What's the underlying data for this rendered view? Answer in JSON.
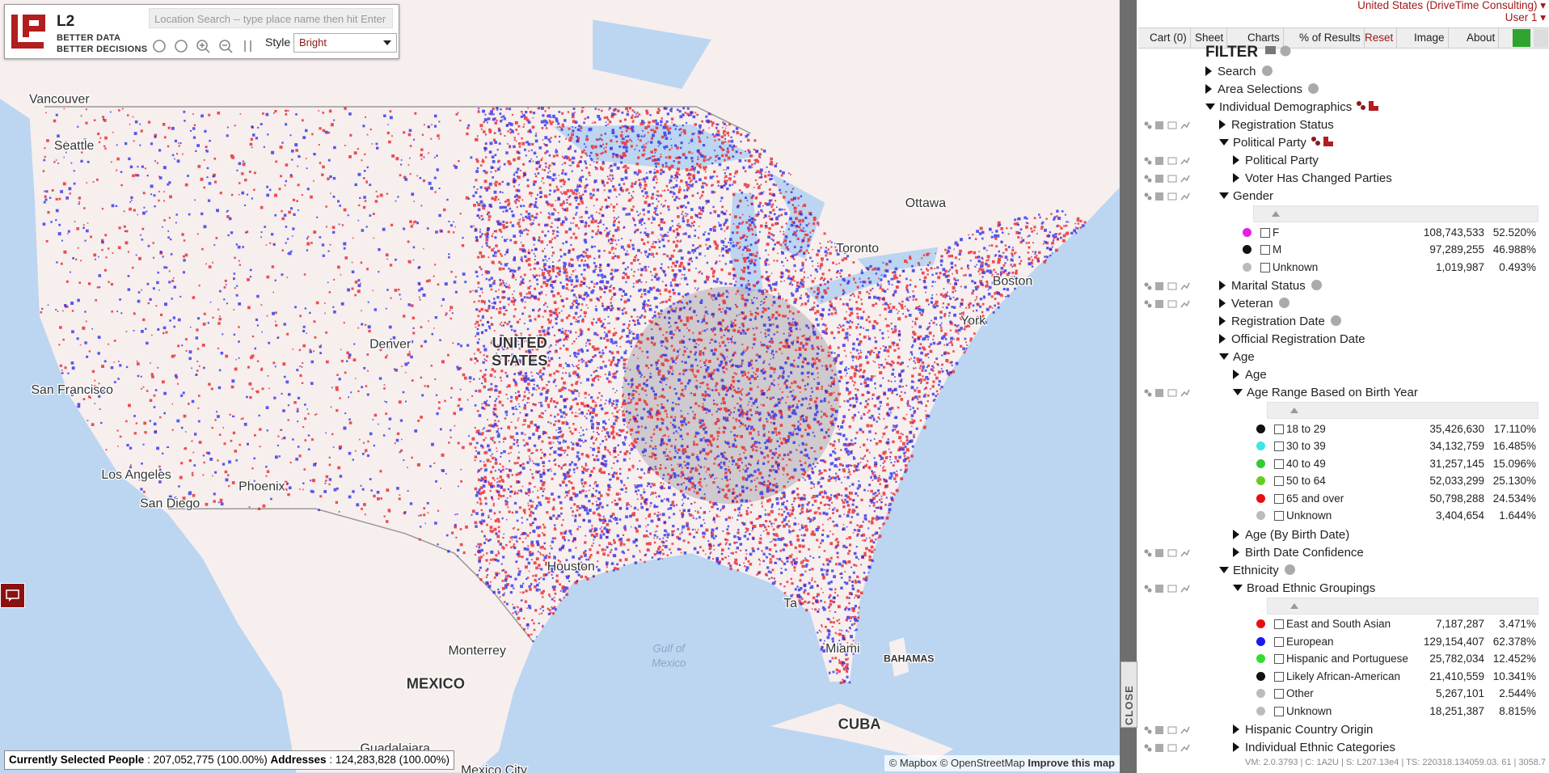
{
  "logo": {
    "mark": "L2",
    "tagline_1": "BETTER DATA",
    "tagline_2": "BETTER DECISIONS"
  },
  "toolbar": {
    "search_placeholder": "Location Search -- type place name then hit Enter",
    "style_label": "Style",
    "style_value": "Bright"
  },
  "map_labels": [
    "Vancouver",
    "Seattle",
    "Ottawa",
    "Toronto",
    "UNITED",
    "STATES",
    "Denver",
    "San Francisco",
    "Los Angeles",
    "Phoenix",
    "San Diego",
    "Houston",
    "Monterrey",
    "MEXICO",
    "Miami",
    "BAHAMAS",
    "CUBA",
    "Gulf of",
    "Mexico",
    "Boston",
    "York",
    "Ta",
    "Guadalajara",
    "Mexico City"
  ],
  "attribution": {
    "mapbox": "© Mapbox",
    "osm": "© OpenStreetMap",
    "improve": "Improve this map"
  },
  "status_bar": {
    "people_label": "Currently Selected People",
    "separator": ":",
    "people_value": "207,052,775 (100.00%)",
    "addresses_label": "Addresses",
    "addresses_value": "124,283,828 (100.00%)"
  },
  "close": "CLOSE",
  "header": {
    "account": "United States (DriveTime Consulting)",
    "user": "User 1"
  },
  "tabs": [
    "Cart (0)",
    "Sheet",
    "Charts",
    "% of Results",
    "Reset",
    "Image",
    "About"
  ],
  "filter": {
    "title": "FILTER",
    "items": [
      {
        "label": "Search",
        "open": false,
        "help": true
      },
      {
        "label": "Area Selections",
        "open": false,
        "help": true
      },
      {
        "label": "Individual Demographics",
        "open": true,
        "badge": true,
        "children": [
          {
            "label": "Registration Status",
            "open": false,
            "tools": true
          },
          {
            "label": "Political Party",
            "open": true,
            "badge": true,
            "children": [
              {
                "label": "Political Party",
                "open": false,
                "tools": true
              },
              {
                "label": "Voter Has Changed Parties",
                "open": false,
                "tools": true
              }
            ]
          },
          {
            "label": "Gender",
            "open": true,
            "tools": true,
            "table": [
              {
                "color": "#e61ee6",
                "label": "F",
                "count": "108,743,533",
                "percent": "52.520%"
              },
              {
                "color": "#111111",
                "label": "M",
                "count": "97,289,255",
                "percent": "46.988%"
              },
              {
                "color": "#bbbbbb",
                "label": "Unknown",
                "count": "1,019,987",
                "percent": "0.493%"
              }
            ]
          },
          {
            "label": "Marital Status",
            "open": false,
            "help": true,
            "tools": true
          },
          {
            "label": "Veteran",
            "open": false,
            "help": true,
            "tools": true
          },
          {
            "label": "Registration Date",
            "open": false,
            "help": true
          },
          {
            "label": "Official Registration Date",
            "open": false
          },
          {
            "label": "Age",
            "open": true,
            "children": [
              {
                "label": "Age",
                "open": false
              },
              {
                "label": "Age Range Based on Birth Year",
                "open": true,
                "tools": true,
                "table": [
                  {
                    "color": "#111111",
                    "label": "18 to 29",
                    "count": "35,426,630",
                    "percent": "17.110%"
                  },
                  {
                    "color": "#3ee6e6",
                    "label": "30 to 39",
                    "count": "34,132,759",
                    "percent": "16.485%"
                  },
                  {
                    "color": "#33cc33",
                    "label": "40 to 49",
                    "count": "31,257,145",
                    "percent": "15.096%"
                  },
                  {
                    "color": "#66cc22",
                    "label": "50 to 64",
                    "count": "52,033,299",
                    "percent": "25.130%"
                  },
                  {
                    "color": "#e61010",
                    "label": "65 and over",
                    "count": "50,798,288",
                    "percent": "24.534%"
                  },
                  {
                    "color": "#bbbbbb",
                    "label": "Unknown",
                    "count": "3,404,654",
                    "percent": "1.644%"
                  }
                ]
              },
              {
                "label": "Age (By Birth Date)",
                "open": false
              },
              {
                "label": "Birth Date Confidence",
                "open": false,
                "tools": true
              }
            ]
          },
          {
            "label": "Ethnicity",
            "open": true,
            "help": true,
            "children": [
              {
                "label": "Broad Ethnic Groupings",
                "open": true,
                "tools": true,
                "table": [
                  {
                    "color": "#e61010",
                    "label": "East and South Asian",
                    "count": "7,187,287",
                    "percent": "3.471%"
                  },
                  {
                    "color": "#1a1aee",
                    "label": "European",
                    "count": "129,154,407",
                    "percent": "62.378%"
                  },
                  {
                    "color": "#33dd33",
                    "label": "Hispanic and Portuguese",
                    "count": "25,782,034",
                    "percent": "12.452%"
                  },
                  {
                    "color": "#111111",
                    "label": "Likely African-American",
                    "count": "21,410,559",
                    "percent": "10.341%"
                  },
                  {
                    "color": "#bbbbbb",
                    "label": "Other",
                    "count": "5,267,101",
                    "percent": "2.544%"
                  },
                  {
                    "color": "#bbbbbb",
                    "label": "Unknown",
                    "count": "18,251,387",
                    "percent": "8.815%"
                  }
                ]
              },
              {
                "label": "Hispanic Country Origin",
                "open": false,
                "tools": true
              },
              {
                "label": "Individual Ethnic Categories",
                "open": false,
                "tools": true
              }
            ]
          }
        ]
      }
    ]
  },
  "version": "VM: 2.0.3793 | C: 1A2U | S: L207.13e4 | TS: 220318.134059.03. 61 | 3058.7"
}
